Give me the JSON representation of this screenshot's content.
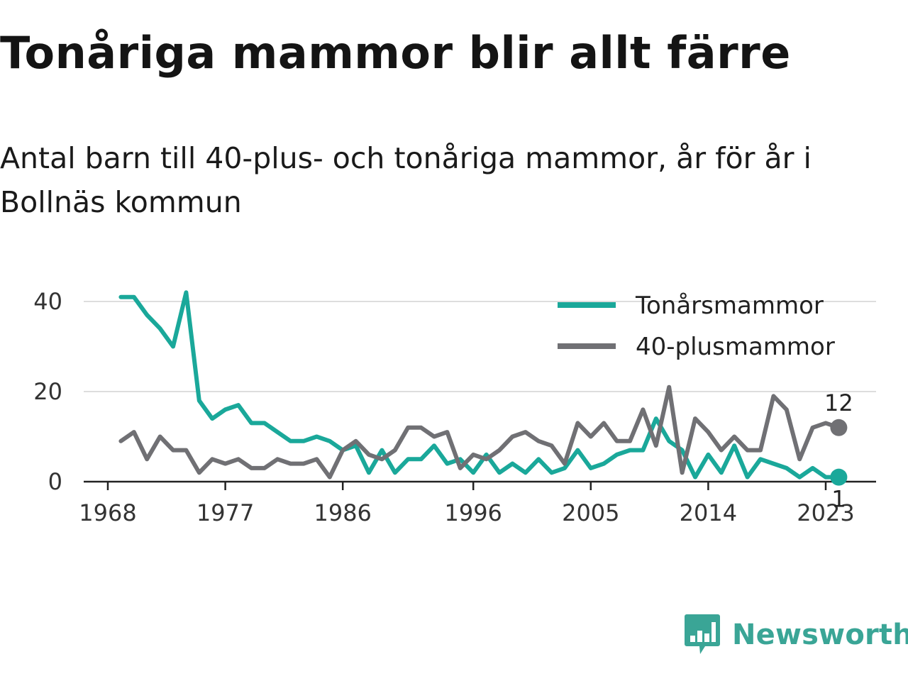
{
  "title": "Tonåriga mammor blir allt färre",
  "subtitle": "Antal barn till 40-plus- och tonåriga mammor, år för år i Bollnäs kommun",
  "brand": {
    "name": "Newsworthy",
    "icon": "bar-chart-speech-bubble-icon",
    "color": "#3aa596"
  },
  "chart_data": {
    "type": "line",
    "x": [
      1969,
      1970,
      1971,
      1972,
      1973,
      1974,
      1975,
      1976,
      1977,
      1978,
      1979,
      1980,
      1981,
      1982,
      1983,
      1984,
      1985,
      1986,
      1987,
      1988,
      1989,
      1990,
      1991,
      1992,
      1993,
      1994,
      1995,
      1996,
      1997,
      1998,
      1999,
      2000,
      2001,
      2002,
      2003,
      2004,
      2005,
      2006,
      2007,
      2008,
      2009,
      2010,
      2011,
      2012,
      2013,
      2014,
      2015,
      2016,
      2017,
      2018,
      2019,
      2020,
      2021,
      2022,
      2023,
      2024
    ],
    "series": [
      {
        "name": "Tonårsmammor",
        "color": "#1aa89a",
        "values": [
          41,
          41,
          37,
          34,
          30,
          42,
          18,
          14,
          16,
          17,
          13,
          13,
          11,
          9,
          9,
          10,
          9,
          7,
          8,
          2,
          7,
          2,
          5,
          5,
          8,
          4,
          5,
          2,
          6,
          2,
          4,
          2,
          5,
          2,
          3,
          7,
          3,
          4,
          6,
          7,
          7,
          14,
          9,
          7,
          1,
          6,
          2,
          8,
          1,
          5,
          4,
          3,
          1,
          3,
          1,
          1
        ]
      },
      {
        "name": "40-plusmammor",
        "color": "#707074",
        "values": [
          9,
          11,
          5,
          10,
          7,
          7,
          2,
          5,
          4,
          5,
          3,
          3,
          5,
          4,
          4,
          5,
          1,
          7,
          9,
          6,
          5,
          7,
          12,
          12,
          10,
          11,
          3,
          6,
          5,
          7,
          10,
          11,
          9,
          8,
          4,
          13,
          10,
          13,
          9,
          9,
          16,
          8,
          21,
          2,
          14,
          11,
          7,
          10,
          7,
          7,
          19,
          16,
          5,
          12,
          13,
          12
        ]
      }
    ],
    "xticks": [
      1968,
      1977,
      1986,
      1996,
      2005,
      2014,
      2023
    ],
    "yticks": [
      0,
      20,
      40
    ],
    "xlim": [
      1968,
      2025
    ],
    "ylim": [
      0,
      42
    ],
    "end_labels": {
      "Tonårsmammor": "1",
      "40-plusmammor": "12"
    },
    "grid": "horizontal",
    "legend": "top-right"
  }
}
